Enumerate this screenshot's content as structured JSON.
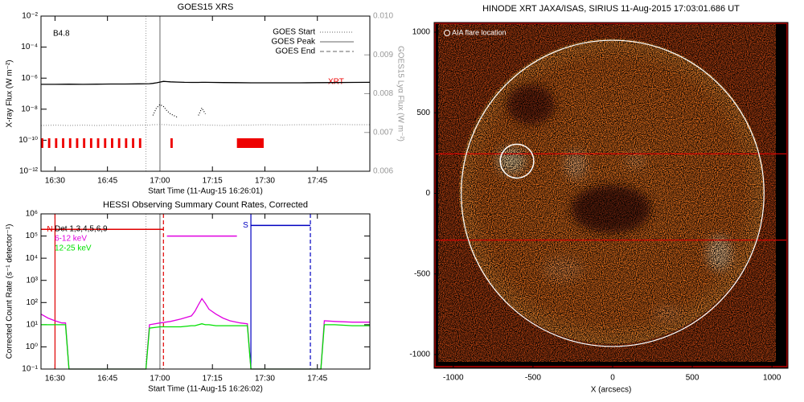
{
  "chart_data": [
    {
      "type": "line",
      "title": "GOES15 XRS",
      "xlabel": "Start Time (11-Aug-15 16:26:01)",
      "ylabel": "X-ray Flux (W m⁻²)",
      "y2label": "GOES15 Lyα Flux (W m⁻²)",
      "log_y": true,
      "xlim": [
        "16:26",
        "18:00"
      ],
      "xticks": [
        "16:30",
        "16:45",
        "17:00",
        "17:15",
        "17:30",
        "17:45"
      ],
      "ylim": [
        1e-12,
        0.01
      ],
      "yticks": [
        {
          "value": 1e-12,
          "label": "10⁻¹²"
        },
        {
          "value": 1e-10,
          "label": "10⁻¹⁰"
        },
        {
          "value": 1e-08,
          "label": "10⁻⁸"
        },
        {
          "value": 1e-06,
          "label": "10⁻⁶"
        },
        {
          "value": 0.0001,
          "label": "10⁻⁴"
        },
        {
          "value": 0.01,
          "label": "10⁻²"
        }
      ],
      "y2lim": [
        0.006,
        0.01
      ],
      "y2ticks": [
        0.006,
        0.007,
        0.008,
        0.009,
        {
          "value": 0.01,
          "label": "0.010"
        }
      ],
      "annotation": "B4.8",
      "x": [
        "16:26",
        "16:30",
        "16:34",
        "16:38",
        "16:42",
        "16:46",
        "16:50",
        "16:54",
        "16:57",
        "16:58",
        "16:59",
        "17:00",
        "17:01",
        "17:02",
        "17:03",
        "17:05",
        "17:07",
        "17:09",
        "17:11",
        "17:12",
        "17:13",
        "17:15",
        "17:18",
        "17:22",
        "17:26",
        "17:30",
        "17:35",
        "17:40",
        "17:45",
        "17:50",
        "17:55",
        "18:00"
      ],
      "series": [
        {
          "color": "#000000",
          "style": "solid",
          "values": [
            4e-07,
            4e-07,
            4.1e-07,
            4e-07,
            4.1e-07,
            4.2e-07,
            4.2e-07,
            4.3e-07,
            4.4e-07,
            4.6e-07,
            5e-07,
            5.6e-07,
            6.2e-07,
            6e-07,
            5.8e-07,
            5.6e-07,
            5.4e-07,
            5.3e-07,
            5.3e-07,
            5.4e-07,
            5.4e-07,
            5.3e-07,
            5.2e-07,
            5.1e-07,
            5e-07,
            5e-07,
            5e-07,
            5e-07,
            5.1e-07,
            5.2e-07,
            5.3e-07,
            5.4e-07
          ]
        },
        {
          "color": "#000000",
          "style": "dotted",
          "values": [
            null,
            null,
            null,
            null,
            null,
            null,
            null,
            null,
            null,
            4e-09,
            1.2e-08,
            2e-08,
            1.5e-08,
            8e-09,
            5e-09,
            3e-09,
            null,
            null,
            4e-09,
            1.2e-08,
            5e-09,
            null,
            null,
            null,
            null,
            null,
            null,
            null,
            null,
            null,
            null,
            null
          ]
        },
        {
          "color": "#999999",
          "style": "dotted",
          "axis": "y2",
          "values": [
            0.00718,
            0.00719,
            0.00718,
            0.00719,
            0.00718,
            0.00719,
            0.00718,
            0.00719,
            0.00719,
            0.0072,
            0.0072,
            0.00721,
            0.0072,
            0.0072,
            0.00719,
            0.00719,
            0.00718,
            0.00719,
            0.00719,
            0.0072,
            0.00719,
            0.00719,
            0.00718,
            0.00719,
            0.00719,
            0.0072,
            0.00719,
            0.0072,
            0.0072,
            0.00721,
            0.0072,
            0.0072
          ]
        }
      ],
      "events": [
        {
          "label": "GOES Start",
          "time": "16:56",
          "style": "dotted"
        },
        {
          "label": "GOES Peak",
          "time": "17:00",
          "style": "solid"
        },
        {
          "label": "GOES End",
          "style": "dashed"
        }
      ],
      "xrt_label": "XRT",
      "xrt_color": "#ee0000",
      "xrt_obs": [
        [
          "16:26",
          "16:27"
        ],
        [
          "16:28",
          "16:29"
        ],
        [
          "16:30",
          "16:31"
        ],
        [
          "16:32",
          "16:33"
        ],
        [
          "16:34",
          "16:35"
        ],
        [
          "16:36",
          "16:37"
        ],
        [
          "16:38",
          "16:39"
        ],
        [
          "16:40",
          "16:41"
        ],
        [
          "16:42",
          "16:43"
        ],
        [
          "16:44",
          "16:45"
        ],
        [
          "16:46",
          "16:47"
        ],
        [
          "16:48",
          "16:49"
        ],
        [
          "16:50",
          "16:51"
        ],
        [
          "16:52",
          "16:53"
        ],
        [
          "16:54",
          "16:55"
        ],
        [
          "17:03",
          "17:04"
        ],
        [
          "17:22",
          "17:30"
        ]
      ]
    },
    {
      "type": "line",
      "title": "HESSI Observing Summary Count Rates, Corrected",
      "xlabel": "Start Time (11-Aug-15 16:26:02)",
      "ylabel": "Corrected Count Rate (s⁻¹ detector⁻¹)",
      "log_y": true,
      "xlim": [
        "16:26",
        "18:00"
      ],
      "xticks": [
        "16:30",
        "16:45",
        "17:00",
        "17:15",
        "17:30",
        "17:45"
      ],
      "ylim": [
        0.1,
        1000000.0
      ],
      "yticks": [
        {
          "value": 0.1,
          "label": "10⁻¹"
        },
        {
          "value": 1,
          "label": "10⁰"
        },
        {
          "value": 10,
          "label": "10¹"
        },
        {
          "value": 100,
          "label": "10²"
        },
        {
          "value": 1000,
          "label": "10³"
        },
        {
          "value": 10000,
          "label": "10⁴"
        },
        {
          "value": 100000,
          "label": "10⁵"
        },
        {
          "value": 1000000,
          "label": "10⁶"
        }
      ],
      "legend_title": "Det 1,3,4,5,6,9",
      "x": [
        "16:26",
        "16:28",
        "16:30",
        "16:32",
        "16:33",
        "16:34",
        "16:40",
        "16:50",
        "16:56",
        "16:57",
        "17:00",
        "17:03",
        "17:06",
        "17:09",
        "17:10",
        "17:11",
        "17:12",
        "17:13",
        "17:14",
        "17:16",
        "17:18",
        "17:20",
        "17:23",
        "17:25",
        "17:26",
        "17:30",
        "17:40",
        "17:46",
        "17:47",
        "17:50",
        "17:55",
        "18:00"
      ],
      "series": [
        {
          "name": "6-12 keV",
          "color": "#e000e0",
          "style": "solid",
          "values": [
            30,
            20,
            15,
            12,
            12,
            0.1,
            0.1,
            0.1,
            0.1,
            10,
            12,
            14,
            18,
            25,
            40,
            80,
            150,
            90,
            50,
            30,
            20,
            15,
            12,
            11,
            0.1,
            0.1,
            0.1,
            0.1,
            15,
            14,
            13,
            13
          ]
        },
        {
          "name": "12-25 keV",
          "color": "#00e000",
          "style": "solid",
          "values": [
            10,
            10,
            10,
            10,
            10,
            0.1,
            0.1,
            0.1,
            0.1,
            7,
            8,
            8,
            8,
            9,
            9,
            10,
            11,
            10,
            10,
            9,
            9,
            9,
            9,
            9,
            0.1,
            0.1,
            0.1,
            0.1,
            10,
            10,
            9,
            9
          ]
        }
      ],
      "events": [
        {
          "time": "16:56",
          "style": "dotted"
        },
        {
          "time": "17:00",
          "style": "solid"
        }
      ],
      "intervals": [
        {
          "label": "N",
          "color": "#e00000",
          "start": "16:30",
          "end": "17:01",
          "level": 200000
        },
        {
          "color": "#e000e0",
          "start": "17:02",
          "end": "17:22",
          "level": 100000
        },
        {
          "label": "S",
          "color": "#0000c0",
          "start": "17:26",
          "end": "17:43",
          "level": 300000
        }
      ]
    },
    {
      "type": "image",
      "title": "HINODE XRT JAXA/ISAS, SIRIUS 11-Aug-2015 17:03:01.686 UT",
      "xlabel": "X (arcsecs)",
      "xlim": [
        -1120,
        1100
      ],
      "ylim": [
        -1085,
        1060
      ],
      "xticks": [
        -1000,
        -500,
        0,
        500,
        1000
      ],
      "yticks": [
        -1000,
        -500,
        0,
        500,
        1000
      ],
      "annotation": "AIA flare location",
      "flare": {
        "x": -600,
        "y": 200,
        "r": 105
      },
      "limb_radius": 950,
      "slit_y": [
        245,
        -290
      ]
    }
  ]
}
